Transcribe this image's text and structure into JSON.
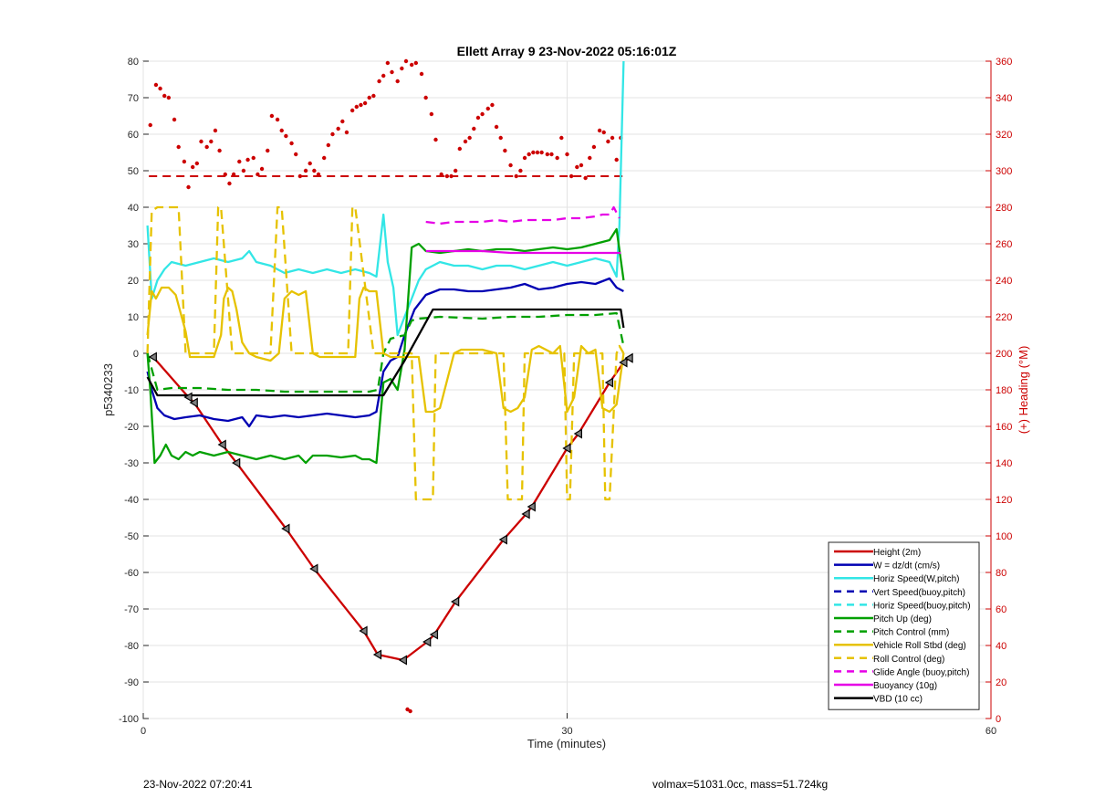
{
  "chart_data": {
    "type": "line",
    "title": "Ellett Array 9 23-Nov-2022 05:16:01Z",
    "xlabel": "Time (minutes)",
    "ylabel": "p5340233",
    "y2label": "(+) Heading (°M)",
    "xlim": [
      0,
      60
    ],
    "ylim": [
      -100,
      80
    ],
    "y2lim": [
      0,
      360
    ],
    "xticks": [
      0,
      30,
      60
    ],
    "yticks": [
      -100,
      -90,
      -80,
      -70,
      -60,
      -50,
      -40,
      -30,
      -20,
      -10,
      0,
      10,
      20,
      30,
      40,
      50,
      60,
      70,
      80
    ],
    "y2ticks": [
      0,
      20,
      40,
      60,
      80,
      100,
      120,
      140,
      160,
      180,
      200,
      220,
      240,
      260,
      280,
      300,
      320,
      340,
      360
    ],
    "grid": true,
    "legend_position": "bottom-right",
    "colors": {
      "height": "#cc0000",
      "w": "#0000b3",
      "horiz": "#33e6e6",
      "vert_buoy": "#0000b3",
      "pitch": "#00a000",
      "roll": "#e6c200",
      "glide": "#e600e6",
      "buoyancy": "#e600e6",
      "vbd": "#000000",
      "heading": "#cc0000"
    },
    "series": [
      {
        "name": "Height (2m)",
        "key": "height",
        "style": "solid",
        "x": [
          0.7,
          3.2,
          3.6,
          5.6,
          6.6,
          10.1,
          12.1,
          15.6,
          16.6,
          18.4,
          20.1,
          20.6,
          22.1,
          25.5,
          27.1,
          27.5,
          30.0,
          30.8,
          33.0,
          34.0,
          34.4
        ],
        "y": [
          -1,
          -12,
          -13.5,
          -25,
          -30,
          -48,
          -59,
          -76,
          -82.5,
          -84,
          -79,
          -77,
          -68,
          -51,
          -44,
          -42,
          -26,
          -22,
          -8,
          -2.5,
          -1.3
        ]
      },
      {
        "name": "W = dz/dt (cm/s)",
        "key": "w",
        "style": "solid",
        "x": [
          0.3,
          0.6,
          1.0,
          1.5,
          2.2,
          3.0,
          4.0,
          5.0,
          6.0,
          7.0,
          7.5,
          8.0,
          9.0,
          10.0,
          11.0,
          12.0,
          13.0,
          14.0,
          15.0,
          16.0,
          16.5,
          17.0,
          17.5,
          18.0,
          18.5,
          19.2,
          20.0,
          21.0,
          22.0,
          23.0,
          24.0,
          25.0,
          26.0,
          27.0,
          28.0,
          29.0,
          30.0,
          31.0,
          32.0,
          33.0,
          33.5,
          34.0
        ],
        "y": [
          -5,
          -10,
          -15,
          -17,
          -18,
          -17.5,
          -17,
          -18,
          -18.5,
          -17.5,
          -20,
          -17,
          -17.5,
          -17,
          -17.5,
          -17,
          -16.5,
          -17,
          -17.5,
          -17,
          -16,
          -5,
          -2,
          -1,
          5,
          12,
          16,
          17.5,
          17.5,
          17,
          17,
          17.5,
          18,
          19,
          17.5,
          18,
          19,
          19.5,
          19,
          20.5,
          18,
          17
        ]
      },
      {
        "name": "Horiz Speed(W,pitch)",
        "key": "horiz",
        "style": "solid",
        "x": [
          0.3,
          0.6,
          1.0,
          1.5,
          2.0,
          3.0,
          4.0,
          5.0,
          6.0,
          7.0,
          7.5,
          8.0,
          9.0,
          10.0,
          11.0,
          12.0,
          13.0,
          14.0,
          15.0,
          16.0,
          16.5,
          17.0,
          17.3,
          17.7,
          18.0,
          18.5,
          19.0,
          19.5,
          20.0,
          21.0,
          22.0,
          23.0,
          24.0,
          25.0,
          26.0,
          27.0,
          28.0,
          29.0,
          30.0,
          31.0,
          32.0,
          33.0,
          33.5,
          33.7,
          34.0
        ],
        "y": [
          35,
          15,
          20,
          23,
          25,
          24,
          25,
          26,
          25,
          26,
          28,
          25,
          24,
          22,
          23,
          22,
          23,
          22,
          23,
          22,
          21,
          38,
          25,
          18,
          5,
          10,
          15,
          20,
          23,
          25,
          24,
          24,
          23,
          24,
          24,
          23,
          24,
          25,
          24,
          25,
          26,
          25,
          21,
          35,
          80
        ]
      },
      {
        "name": "Vert Speed(buoy,pitch)",
        "key": "vert_buoy",
        "style": "dashed",
        "x": [],
        "y": []
      },
      {
        "name": "Horiz Speed(buoy,pitch)",
        "key": "horiz_buoy",
        "style": "dashed",
        "x": [],
        "y": []
      },
      {
        "name": "Pitch Up (deg)",
        "key": "pitch",
        "style": "solid",
        "x": [
          0.3,
          0.5,
          0.8,
          1.2,
          1.6,
          2.0,
          2.5,
          3.0,
          3.5,
          4.0,
          5.0,
          6.0,
          7.0,
          8.0,
          9.0,
          10.0,
          11.0,
          11.5,
          12.0,
          13.0,
          14.0,
          15.0,
          15.5,
          16.0,
          16.5,
          17.0,
          17.5,
          18.0,
          18.5,
          19.0,
          19.5,
          20.0,
          21.0,
          22.0,
          23.0,
          24.0,
          25.0,
          26.0,
          27.0,
          28.0,
          29.0,
          30.0,
          31.0,
          32.0,
          33.0,
          33.5,
          34.0
        ],
        "y": [
          0,
          -10,
          -30,
          -28,
          -25,
          -28,
          -29,
          -27,
          -28,
          -27,
          -28,
          -27,
          -28,
          -29,
          -28,
          -29,
          -28,
          -30,
          -28,
          -28,
          -28.5,
          -28,
          -29,
          -29,
          -30,
          -8,
          -7,
          -10,
          1,
          29,
          30,
          28,
          27.5,
          28,
          28.5,
          28,
          28.5,
          28.5,
          28,
          28.5,
          29,
          28.5,
          29,
          30,
          31,
          34,
          20
        ]
      },
      {
        "name": "Pitch Control (mm)",
        "key": "pitch_ctrl",
        "style": "dashed",
        "x": [
          0.3,
          1.0,
          2.0,
          4.0,
          6.0,
          8.0,
          10.0,
          12.0,
          14.0,
          16.0,
          16.6,
          17.0,
          17.5,
          18.5,
          19.0,
          19.5,
          21.0,
          24.0,
          26.0,
          28.0,
          30.0,
          32.0,
          33.5,
          34.0
        ],
        "y": [
          0,
          -10,
          -9.5,
          -9.5,
          -10,
          -10,
          -10.5,
          -10.5,
          -10.5,
          -10.5,
          -10,
          0,
          4,
          5,
          9,
          9.5,
          10,
          9.5,
          10,
          10,
          10.5,
          10.5,
          11,
          2
        ]
      },
      {
        "name": "Vehicle Roll Stbd (deg)",
        "key": "roll",
        "style": "solid",
        "x": [
          0.3,
          0.6,
          0.9,
          1.3,
          1.8,
          2.3,
          3.0,
          3.3,
          3.6,
          4.0,
          5.0,
          5.5,
          5.7,
          6.0,
          6.3,
          6.6,
          7.0,
          7.5,
          8.0,
          9.0,
          9.6,
          10.0,
          10.5,
          11.0,
          11.5,
          12.0,
          12.5,
          13.0,
          14.0,
          15.0,
          15.3,
          15.6,
          16.0,
          16.5,
          17.0,
          17.5,
          18.0,
          19.0,
          19.5,
          20.0,
          20.5,
          21.0,
          22.0,
          22.5,
          23.0,
          24.0,
          25.0,
          25.5,
          26.0,
          26.5,
          27.0,
          27.5,
          28.0,
          29.0,
          29.5,
          30.0,
          30.5,
          31.0,
          31.5,
          32.0,
          32.5,
          33.0,
          33.5,
          34.0
        ],
        "y": [
          5,
          17,
          15,
          18,
          18,
          16,
          6,
          -1,
          -1,
          -1,
          -1,
          5,
          15,
          18,
          17,
          12,
          3,
          0,
          -1,
          -2,
          0,
          15,
          17,
          16,
          17,
          0,
          -1,
          -1,
          -1,
          -1,
          15,
          18,
          17,
          17,
          0,
          -1,
          -1,
          -1,
          -1,
          -16,
          -16,
          -15,
          0,
          1,
          1,
          1,
          0,
          -15,
          -16,
          -15,
          -12,
          1,
          2,
          0,
          2,
          -16,
          -12,
          2,
          0,
          1,
          -15,
          -16,
          -14,
          0
        ]
      },
      {
        "name": "Roll Control (deg)",
        "key": "roll_ctrl",
        "style": "dashed",
        "x": [
          0.3,
          0.6,
          1.0,
          2.5,
          3.0,
          3.5,
          5.0,
          5.3,
          5.5,
          6.3,
          6.5,
          7.0,
          9.0,
          9.5,
          9.8,
          10.5,
          10.7,
          11.0,
          14.5,
          14.8,
          15.0,
          16.3,
          16.5,
          17.0,
          19.0,
          19.3,
          19.5,
          20.5,
          20.7,
          21.0,
          25.5,
          25.8,
          26.0,
          26.8,
          27.0,
          27.3,
          29.8,
          30.0,
          30.2,
          30.5,
          30.7,
          31.0,
          32.5,
          32.7,
          33.0,
          33.5,
          33.7,
          34.0
        ],
        "y": [
          0,
          39,
          40,
          40,
          0,
          0,
          0,
          40,
          40,
          0,
          0,
          0,
          0,
          40,
          40,
          0,
          0,
          0,
          0,
          40,
          40,
          0,
          0,
          0,
          0,
          -40,
          -40,
          -40,
          0,
          0,
          0,
          -40,
          -40,
          -40,
          0,
          0,
          0,
          -40,
          -40,
          0,
          0,
          0,
          0,
          -40,
          -40,
          0,
          2,
          0
        ]
      },
      {
        "name": "Glide Angle (buoy,pitch)",
        "key": "glide",
        "style": "dashed",
        "x": [
          20.0,
          21.0,
          22.0,
          23.0,
          24.0,
          25.0,
          26.0,
          27.0,
          28.0,
          29.0,
          30.0,
          31.0,
          32.0,
          32.5,
          33.0,
          33.3,
          33.7
        ],
        "y": [
          36,
          35.5,
          36,
          36,
          36,
          36.5,
          36,
          36.5,
          36.5,
          36.5,
          37,
          37,
          37.5,
          38,
          38,
          40,
          37
        ]
      },
      {
        "name": "Buoyancy (10g)",
        "key": "buoyancy",
        "style": "solid",
        "x": [
          20.0,
          22.0,
          24.0,
          26.0,
          28.0,
          30.0,
          32.0,
          33.8
        ],
        "y": [
          28,
          28,
          28,
          27.5,
          27.5,
          27.5,
          27.5,
          27.5
        ]
      },
      {
        "name": "VBD (10 cc)",
        "key": "vbd",
        "style": "solid",
        "x": [
          0.3,
          1.0,
          2.0,
          5.0,
          10.0,
          15.0,
          17.0,
          18.5,
          20.5,
          22.0,
          25.0,
          30.0,
          33.8,
          34.0
        ],
        "y": [
          -6.5,
          -11.5,
          -11.5,
          -11.5,
          -11.5,
          -11.5,
          -11.5,
          -2,
          12,
          12,
          12,
          12,
          12,
          7
        ]
      }
    ],
    "heading_points": {
      "name": "(+) Heading (°M)",
      "x": [
        0.5,
        0.9,
        1.2,
        1.5,
        1.8,
        2.2,
        2.5,
        2.9,
        3.2,
        3.5,
        3.8,
        4.1,
        4.5,
        4.8,
        5.1,
        5.4,
        5.8,
        6.1,
        6.4,
        6.8,
        7.1,
        7.4,
        7.8,
        8.1,
        8.4,
        8.8,
        9.1,
        9.5,
        9.8,
        10.1,
        10.5,
        10.8,
        11.1,
        11.5,
        11.8,
        12.1,
        12.4,
        12.8,
        13.1,
        13.4,
        13.8,
        14.1,
        14.4,
        14.8,
        15.1,
        15.4,
        15.7,
        16.0,
        16.3,
        16.7,
        17.0,
        17.3,
        17.6,
        18.0,
        18.3,
        18.6,
        19.0,
        19.3,
        19.7,
        20.0,
        20.4,
        20.7,
        21.1,
        21.5,
        21.8,
        22.1,
        22.4,
        22.8,
        23.1,
        23.4,
        23.7,
        24.0,
        24.4,
        24.7,
        25.0,
        25.3,
        25.6,
        26.0,
        26.4,
        26.7,
        27.0,
        27.3,
        27.6,
        27.9,
        28.2,
        28.6,
        28.9,
        29.3,
        29.6,
        30.0,
        30.3,
        30.7,
        31.0,
        31.3,
        31.6,
        31.9,
        32.3,
        32.6,
        32.9,
        33.2,
        33.5,
        33.8,
        18.7,
        18.9
      ],
      "y": [
        325,
        347,
        345,
        341,
        340,
        328,
        313,
        305,
        291,
        302,
        304,
        316,
        313,
        316,
        322,
        311,
        298,
        293,
        298,
        305,
        300,
        306,
        307,
        298,
        301,
        311,
        330,
        328,
        322,
        319,
        315,
        309,
        297,
        300,
        304,
        300,
        298,
        307,
        314,
        320,
        323,
        327,
        321,
        333,
        335,
        336,
        337,
        340,
        341,
        349,
        352,
        359,
        354,
        349,
        356,
        360,
        358,
        359,
        353,
        340,
        331,
        317,
        298,
        297,
        297,
        300,
        312,
        316,
        318,
        323,
        329,
        331,
        334,
        336,
        324,
        318,
        311,
        303,
        297,
        300,
        307,
        309,
        310,
        310,
        310,
        309,
        309,
        307,
        318,
        309,
        297,
        302,
        303,
        296,
        307,
        313,
        322,
        321,
        316,
        318,
        306,
        318,
        5,
        4
      ]
    },
    "reference_line": {
      "y2": 297,
      "style": "dashed"
    },
    "triangle_markers": {
      "x": [
        0.7,
        3.2,
        3.6,
        5.6,
        6.6,
        10.1,
        12.1,
        15.6,
        16.6,
        18.4,
        20.1,
        20.6,
        22.1,
        25.5,
        27.1,
        27.5,
        30.0,
        30.8,
        33.0,
        34.0,
        34.4
      ],
      "y": [
        -1,
        -12,
        -13.5,
        -25,
        -30,
        -48,
        -59,
        -76,
        -82.5,
        -84,
        -79,
        -77,
        -68,
        -51,
        -44,
        -42,
        -26,
        -22,
        -8,
        -2.5,
        -1.3
      ]
    }
  },
  "footer": {
    "left": "23-Nov-2022 07:20:41",
    "right": "volmax=51031.0cc, mass=51.724kg"
  }
}
